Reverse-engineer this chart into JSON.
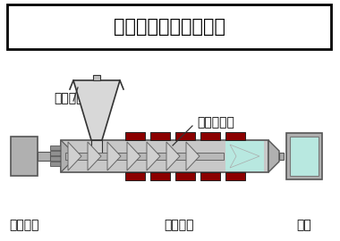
{
  "title": "射出成形機のイメージ",
  "bg_color": "#ffffff",
  "label_motor": "モーター",
  "label_hopper": "ホッパー",
  "label_screw": "スクリュー",
  "label_heater": "ヒーター",
  "label_mold": "金型",
  "barrel_color": "#c8c8c8",
  "heater_color": "#8b0000",
  "melt_color": "#b8e8e0",
  "motor_color": "#b0b0b0",
  "mold_fill": "#b8e8e0",
  "dark_gray": "#808080",
  "mid_gray": "#a0a0a0",
  "light_gray": "#d0d0d0"
}
